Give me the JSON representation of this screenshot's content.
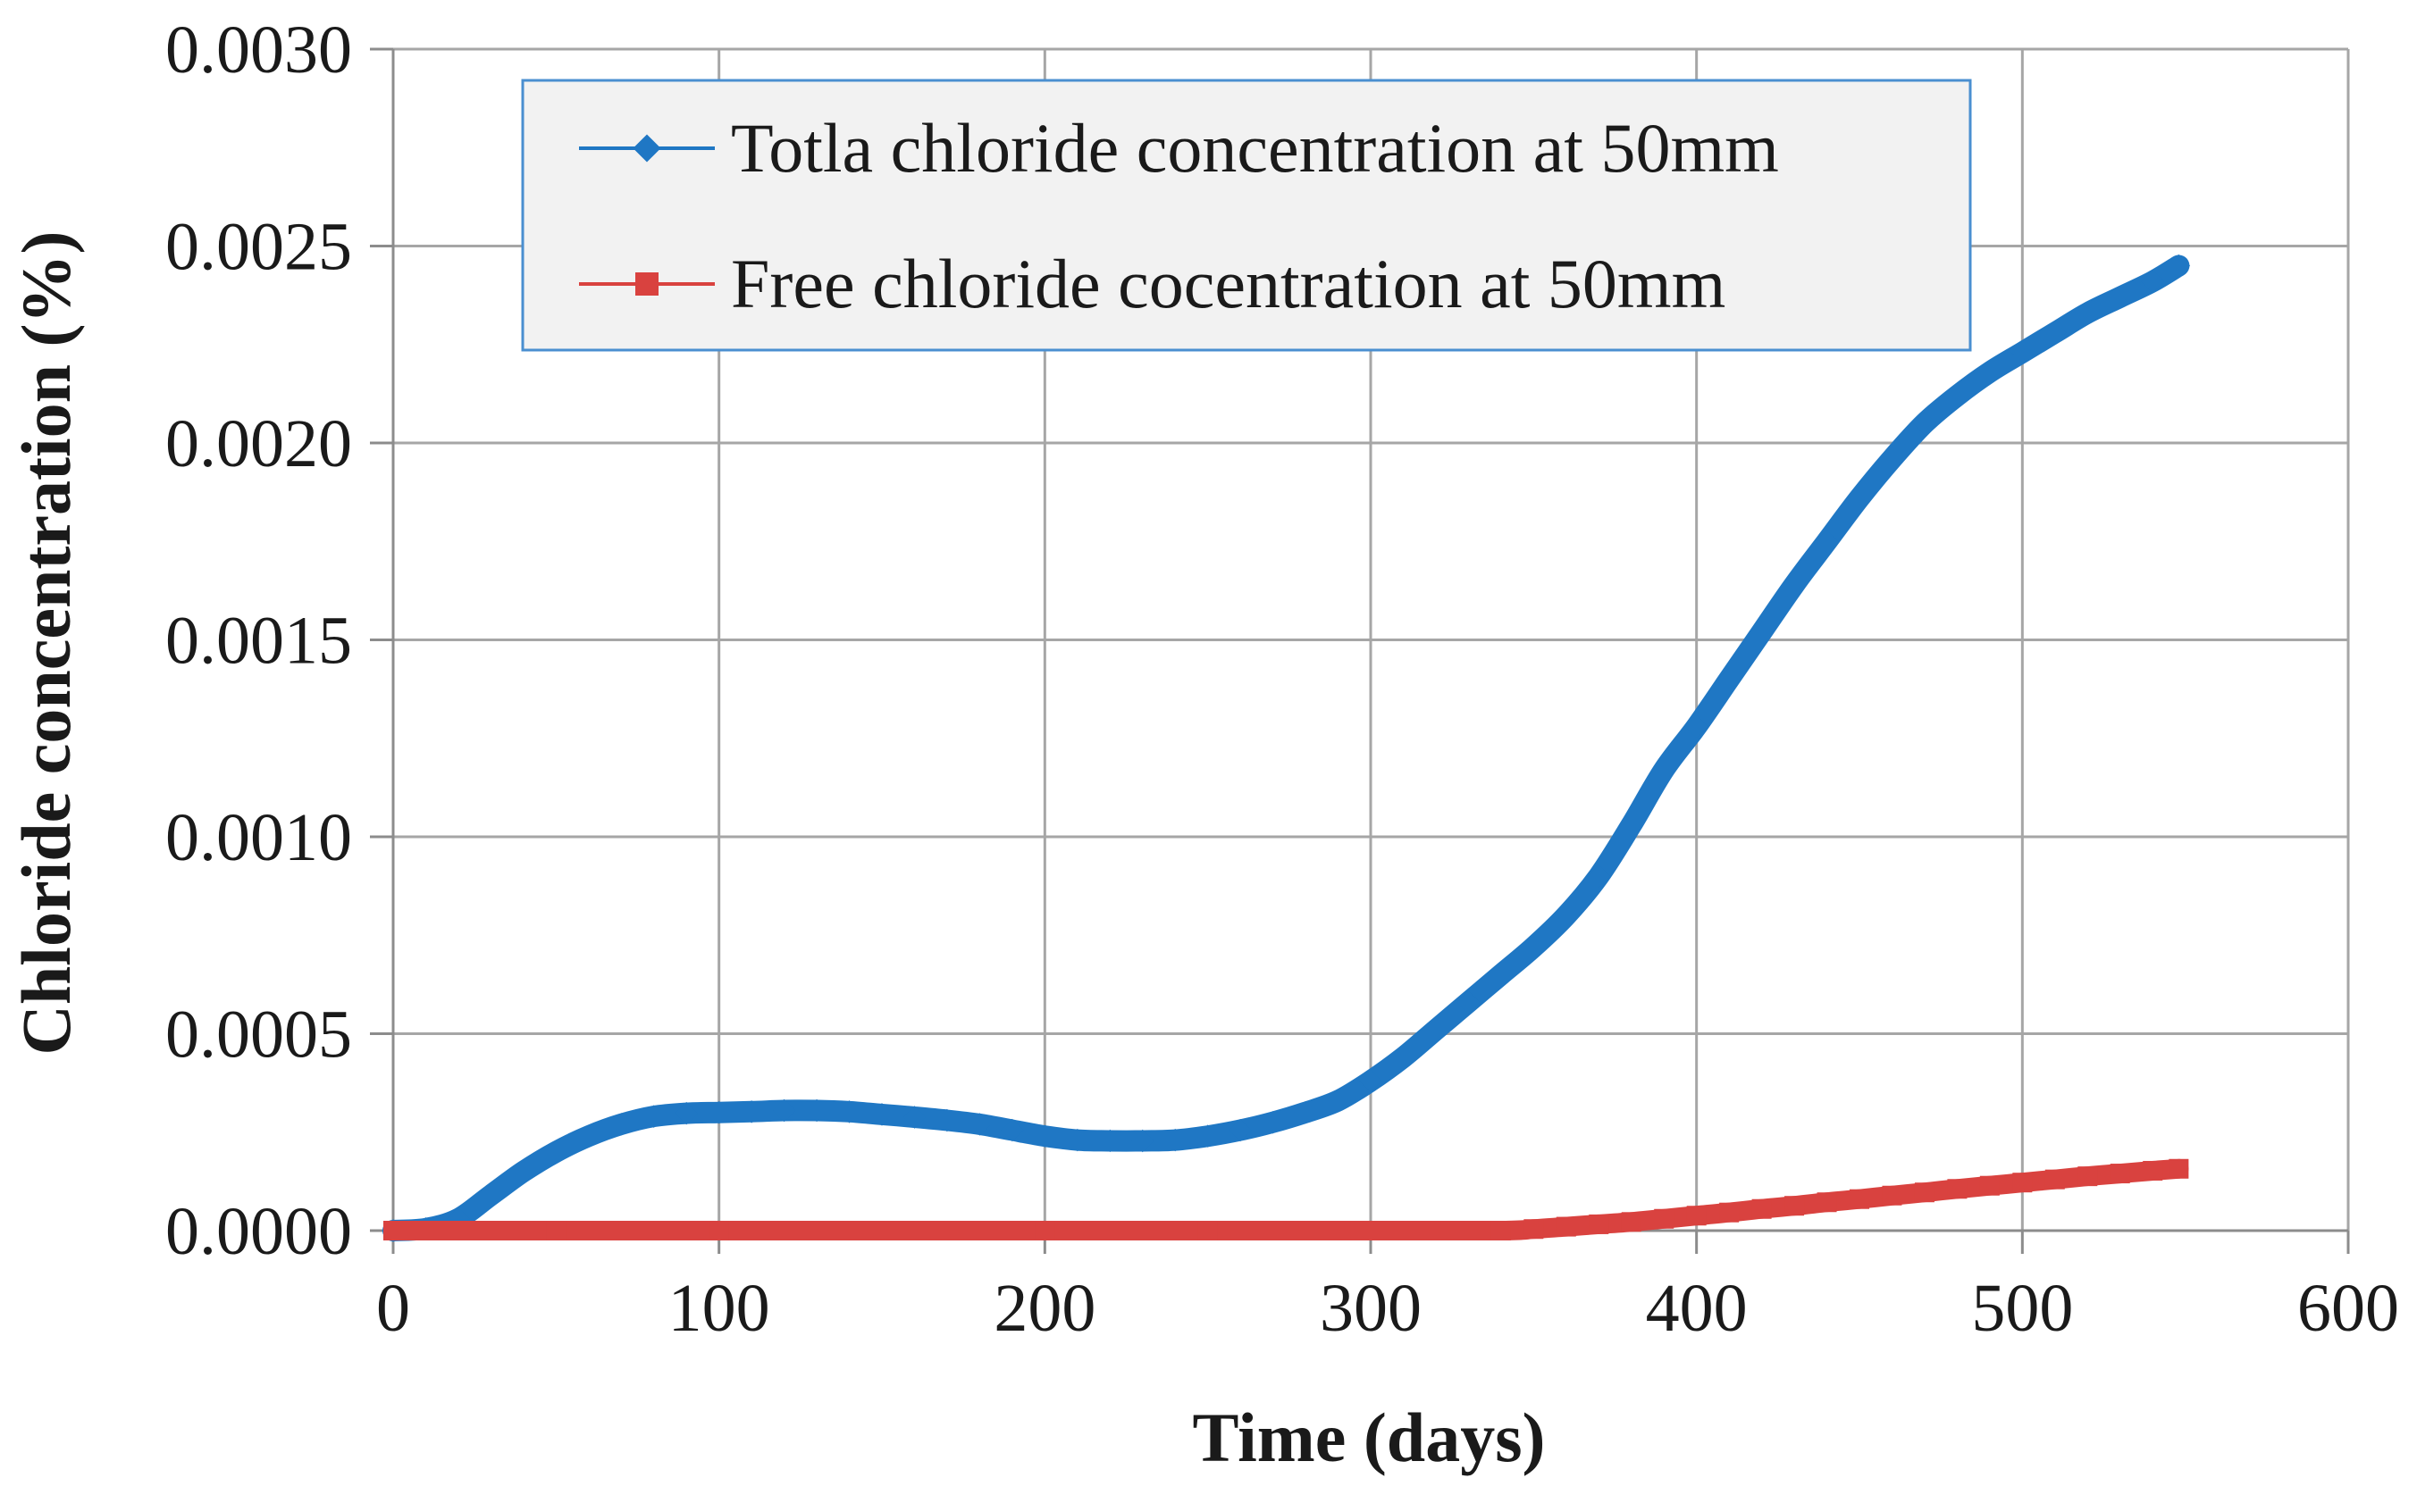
{
  "chart_data": {
    "type": "line",
    "title": "",
    "xlabel": "Time (days)",
    "ylabel": "Chloride concentration (%)",
    "xlim": [
      0,
      600
    ],
    "ylim": [
      0,
      0.003
    ],
    "xticks": [
      0,
      100,
      200,
      300,
      400,
      500,
      600
    ],
    "xtick_labels": [
      "0",
      "100",
      "200",
      "300",
      "400",
      "500",
      "600"
    ],
    "yticks": [
      0,
      0.0005,
      0.001,
      0.0015,
      0.002,
      0.0025,
      0.003
    ],
    "ytick_labels": [
      "0.0000",
      "0.0005",
      "0.0010",
      "0.0015",
      "0.0020",
      "0.0025",
      "0.0030"
    ],
    "grid": true,
    "legend_position": "top-center",
    "series": [
      {
        "name": "Totla chloride concentration at 50mm",
        "color": "#1f77c4",
        "marker": "diamond",
        "x": [
          0,
          10,
          20,
          30,
          40,
          50,
          60,
          70,
          80,
          90,
          100,
          110,
          120,
          130,
          140,
          150,
          160,
          170,
          180,
          190,
          200,
          210,
          220,
          230,
          240,
          250,
          260,
          270,
          280,
          290,
          300,
          310,
          320,
          330,
          340,
          350,
          360,
          370,
          380,
          390,
          400,
          410,
          420,
          430,
          440,
          450,
          460,
          470,
          480,
          490,
          500,
          510,
          520,
          530,
          540,
          548
        ],
        "values": [
          0.0,
          5e-06,
          3e-05,
          9e-05,
          0.00015,
          0.0002,
          0.00024,
          0.00027,
          0.00029,
          0.000298,
          0.0003,
          0.000302,
          0.000305,
          0.000305,
          0.000302,
          0.000295,
          0.000288,
          0.00028,
          0.00027,
          0.000255,
          0.00024,
          0.00023,
          0.000228,
          0.000228,
          0.00023,
          0.00024,
          0.000255,
          0.000275,
          0.0003,
          0.00033,
          0.00038,
          0.00044,
          0.00051,
          0.00058,
          0.00065,
          0.00072,
          0.0008,
          0.0009,
          0.00103,
          0.00117,
          0.00128,
          0.0014,
          0.00152,
          0.00164,
          0.00175,
          0.00186,
          0.00196,
          0.00205,
          0.00212,
          0.00218,
          0.00223,
          0.00228,
          0.00233,
          0.00237,
          0.00241,
          0.00245
        ]
      },
      {
        "name": "Free chloride cocentration at 50mm",
        "color": "#d9423f",
        "marker": "square",
        "x": [
          0,
          50,
          100,
          150,
          200,
          250,
          300,
          340,
          350,
          360,
          370,
          380,
          390,
          400,
          410,
          420,
          430,
          440,
          450,
          460,
          470,
          480,
          490,
          500,
          510,
          520,
          530,
          540,
          548
        ],
        "values": [
          0.0,
          0.0,
          0.0,
          0.0,
          0.0,
          0.0,
          0.0,
          0.0,
          4e-06,
          1e-05,
          1.6e-05,
          2.2e-05,
          3e-05,
          3.8e-05,
          4.6e-05,
          5.5e-05,
          6.3e-05,
          7.2e-05,
          8e-05,
          8.9e-05,
          9.7e-05,
          0.000106,
          0.000114,
          0.000122,
          0.00013,
          0.000138,
          0.000145,
          0.000152,
          0.000157
        ]
      }
    ]
  }
}
